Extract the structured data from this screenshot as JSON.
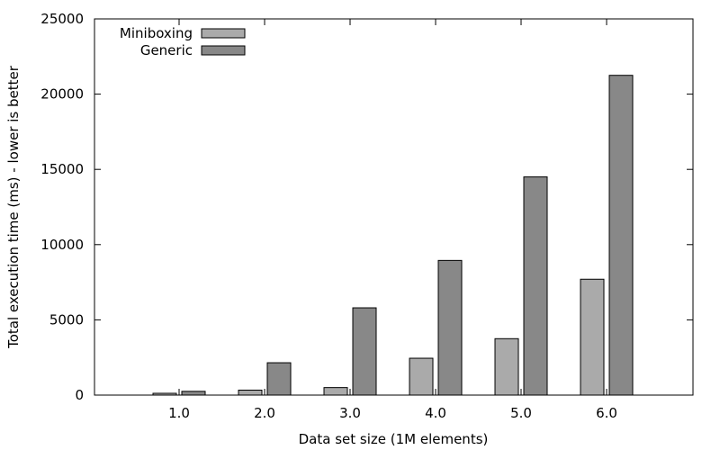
{
  "chart_data": {
    "type": "bar",
    "title": "",
    "xlabel": "Data set size (1M elements)",
    "ylabel": "Total execution time (ms) - lower is better",
    "categories": [
      "1.0",
      "2.0",
      "3.0",
      "4.0",
      "5.0",
      "6.0"
    ],
    "ylim": [
      0,
      25000
    ],
    "yticks": [
      0,
      5000,
      10000,
      15000,
      20000,
      25000
    ],
    "grid": false,
    "legend_position": "top-left",
    "series": [
      {
        "name": "Miniboxing",
        "color": "#aaaaaa",
        "values": [
          120,
          330,
          500,
          2450,
          3750,
          7700
        ]
      },
      {
        "name": "Generic",
        "color": "#888888",
        "values": [
          250,
          2150,
          5800,
          8950,
          14500,
          21250
        ]
      }
    ]
  }
}
